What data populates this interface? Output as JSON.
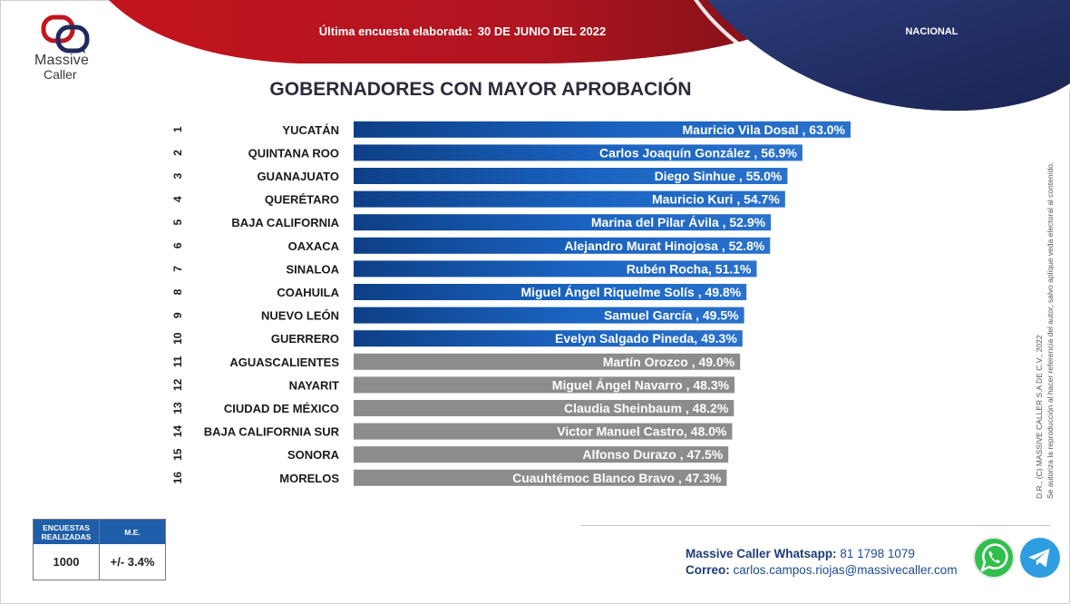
{
  "brand": {
    "logo_line1": "Massive",
    "logo_line2": "Caller"
  },
  "header": {
    "date_label": "Última encuesta elaborada:",
    "date_value": "30 DE JUNIO DEL 2022",
    "region": "NACIONAL",
    "colors": {
      "red": "#b3141f",
      "navy": "#1f2a5c"
    }
  },
  "chart_data": {
    "type": "bar",
    "orientation": "horizontal",
    "title": "GOBERNADORES CON MAYOR APROBACIÓN",
    "xlim": [
      0,
      63.0
    ],
    "ranks": [
      "1",
      "2",
      "3",
      "4",
      "5",
      "6",
      "7",
      "8",
      "9",
      "10",
      "11",
      "12",
      "13",
      "14",
      "15",
      "16"
    ],
    "categories": [
      "YUCATÁN",
      "QUINTANA ROO",
      "GUANAJUATO",
      "QUERÉTARO",
      "BAJA CALIFORNIA",
      "OAXACA",
      "SINALOA",
      "COAHUILA",
      "NUEVO LEÓN",
      "GUERRERO",
      "AGUASCALIENTES",
      "NAYARIT",
      "CIUDAD DE MÉXICO",
      "BAJA CALIFORNIA SUR",
      "SONORA",
      "MORELOS"
    ],
    "values": [
      63.0,
      56.9,
      55.0,
      54.7,
      52.9,
      52.8,
      51.1,
      49.8,
      49.5,
      49.3,
      49.0,
      48.3,
      48.2,
      48.0,
      47.5,
      47.3
    ],
    "data_labels": [
      "Mauricio Vila Dosal , 63.0%",
      "Carlos Joaquín González , 56.9%",
      "Diego Sinhue , 55.0%",
      "Mauricio Kuri , 54.7%",
      "Marina del Pilar Ávila , 52.9%",
      "Alejandro Murat Hinojosa , 52.8%",
      "Rubén Rocha, 51.1%",
      "Miguel Ángel Riquelme Solís , 49.8%",
      "Samuel García , 49.5%",
      "Evelyn Salgado Pineda, 49.3%",
      "Martín Orozco , 49.0%",
      "Miguel Ángel Navarro , 48.3%",
      "Claudia Sheinbaum , 48.2%",
      "Victor Manuel Castro, 48.0%",
      "Alfonso Durazo , 47.5%",
      "Cuauhtémoc Blanco Bravo , 47.3%"
    ],
    "bar_colors": [
      "blue",
      "blue",
      "blue",
      "blue",
      "blue",
      "blue",
      "blue",
      "blue",
      "blue",
      "blue",
      "gray",
      "gray",
      "gray",
      "gray",
      "gray",
      "gray"
    ],
    "colors": {
      "blue": "#1a5fb4",
      "blue_dark": "#0d3f86",
      "gray": "#8c8c8c"
    },
    "grid": false,
    "legend": "none"
  },
  "side_note": {
    "line1": "D.R., (C) MASSIVE CALLER S.A DE C.V., 2022",
    "line2": "Se autoriza la reproducción al hacer referencia del autor, salvo aplique veda electoral al contenido."
  },
  "stats": {
    "col1_header": "ENCUESTAS REALIZADAS",
    "col2_header": "M.E.",
    "col1_value": "1000",
    "col2_value": "+/- 3.4%"
  },
  "contact": {
    "whatsapp_label": "Massive Caller Whatsapp:",
    "whatsapp_number": "81 1798 1079",
    "email_label": "Correo:",
    "email": "carlos.campos.riojas@massivecaller.com",
    "whatsapp_icon": "whatsapp-icon",
    "telegram_icon": "telegram-icon"
  }
}
